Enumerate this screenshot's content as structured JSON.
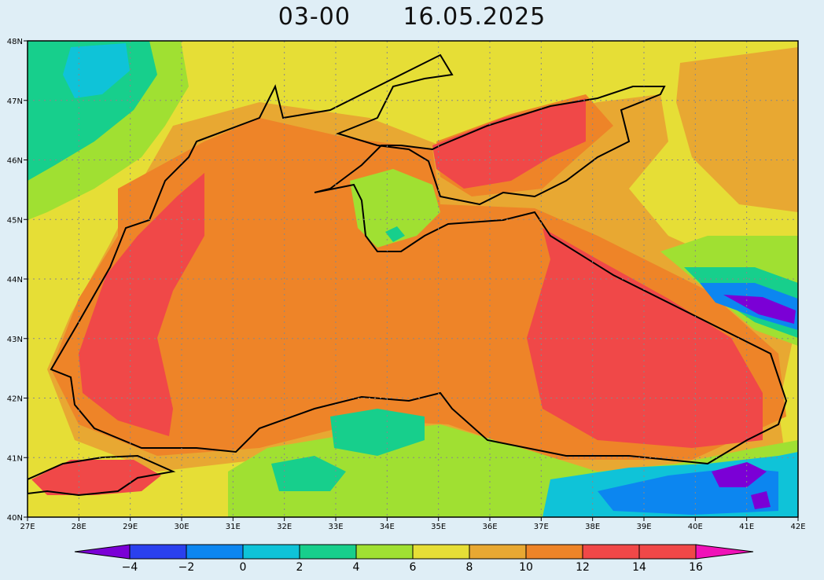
{
  "title": {
    "time": "03-00",
    "date": "16.05.2025"
  },
  "lat_labels": [
    "48N",
    "47N",
    "46N",
    "45N",
    "44N",
    "43N",
    "42N",
    "41N",
    "40N"
  ],
  "lon_labels": [
    "27E",
    "28E",
    "29E",
    "30E",
    "31E",
    "32E",
    "33E",
    "34E",
    "35E",
    "36E",
    "37E",
    "38E",
    "39E",
    "40E",
    "41E",
    "42E"
  ],
  "colorbar": {
    "labels": [
      "-4",
      "-2",
      "0",
      "2",
      "4",
      "6",
      "8",
      "10",
      "12",
      "14",
      "16"
    ],
    "colors": [
      "#7b00d6",
      "#2a40ee",
      "#0c86f0",
      "#0fc3d8",
      "#17cf8c",
      "#a0e032",
      "#e6de36",
      "#e8a832",
      "#ee8428",
      "#f04848",
      "#f012b8"
    ]
  },
  "palette": {
    "sea": "#ee8428",
    "warm": "#f04848",
    "coast": "#e8a832",
    "land": "#e6de36",
    "green": "#a0e032",
    "teal": "#17cf8c",
    "cyan": "#0fc3d8",
    "blue": "#0c86f0",
    "violet": "#7b00d6"
  }
}
